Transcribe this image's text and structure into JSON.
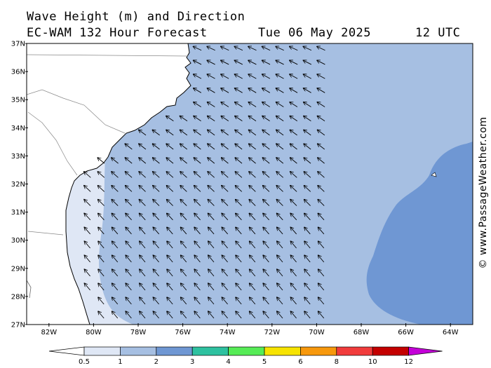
{
  "title": {
    "line1": "Wave Height (m) and Direction",
    "model": "EC-WAM 132 Hour Forecast",
    "date": "Tue 06 May 2025",
    "time": "12 UTC"
  },
  "copyright": "© www.PassageWeather.com",
  "map": {
    "lat_labels": [
      "27N",
      "28N",
      "29N",
      "30N",
      "31N",
      "32N",
      "33N",
      "34N",
      "35N",
      "36N",
      "37N"
    ],
    "lon_labels": [
      "82W",
      "80W",
      "78W",
      "76W",
      "74W",
      "72W",
      "70W",
      "68W",
      "66W",
      "64W"
    ],
    "lat_range": [
      27,
      37
    ],
    "lon_range": [
      -83.0,
      -63.0
    ],
    "land_color": "#ffffff",
    "wave_direction": "predominantly from the east-southeast (arrows pointing west / northwest)",
    "wave_bands_shown": [
      "0.5-1",
      "1-2",
      "2-3"
    ]
  },
  "legend": {
    "tick_labels": [
      "0.5",
      "1",
      "2",
      "3",
      "4",
      "5",
      "6",
      "8",
      "10",
      "12"
    ],
    "colors": [
      "#dfe7f5",
      "#a6bfe2",
      "#6f97d3",
      "#2ec1a0",
      "#56ec56",
      "#f7e300",
      "#f7980c",
      "#f13c3c",
      "#c40000",
      "#b000c0"
    ],
    "under_color": "#ffffff",
    "over_color": "#c400d8"
  }
}
